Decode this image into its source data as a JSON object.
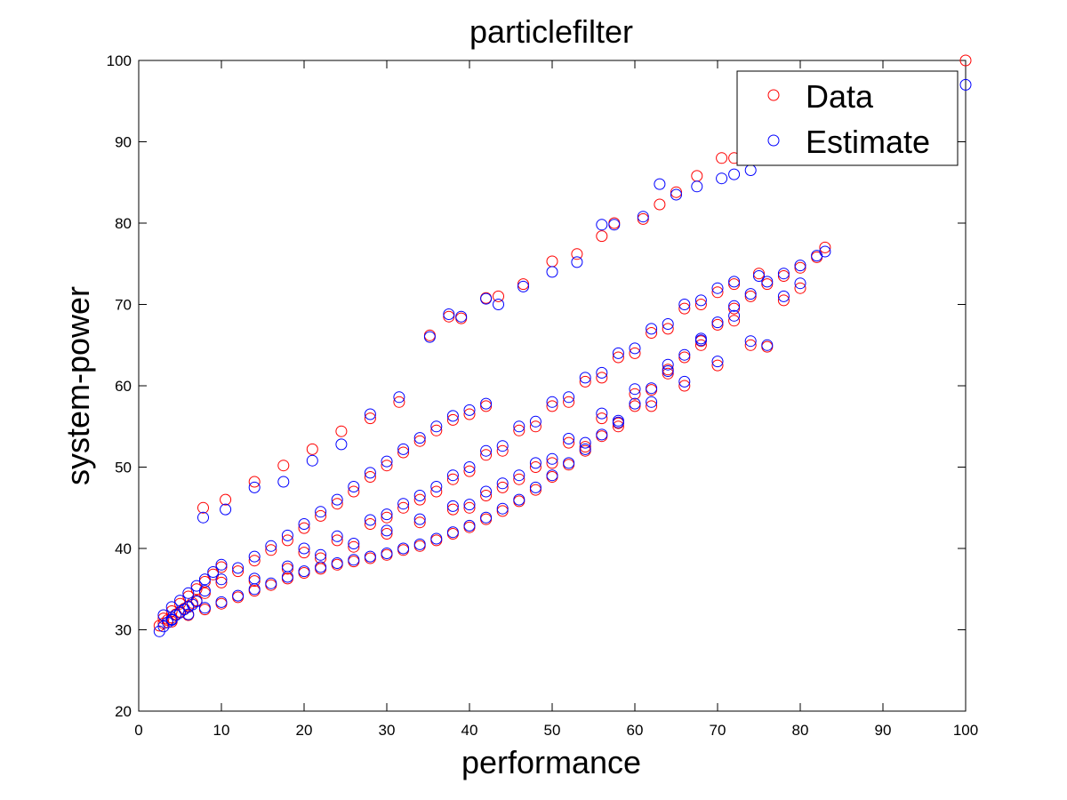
{
  "chart_data": {
    "type": "scatter",
    "title": "particlefilter",
    "xlabel": "performance",
    "ylabel": "system-power",
    "xlim": [
      0,
      100
    ],
    "ylim": [
      20,
      100
    ],
    "xticks": [
      0,
      10,
      20,
      30,
      40,
      50,
      60,
      70,
      80,
      90,
      100
    ],
    "yticks": [
      20,
      30,
      40,
      50,
      60,
      70,
      80,
      90,
      100
    ],
    "grid": false,
    "legend_position": "top-right",
    "marker": "open-circle",
    "series": [
      {
        "name": "Data",
        "color": "#ff0000",
        "points": [
          [
            2.5,
            30.5
          ],
          [
            3,
            30.8
          ],
          [
            3.5,
            31.2
          ],
          [
            4,
            31.5
          ],
          [
            4.5,
            31.9
          ],
          [
            5,
            32.2
          ],
          [
            5.5,
            32.6
          ],
          [
            6,
            32.9
          ],
          [
            6.5,
            33.3
          ],
          [
            7,
            33.6
          ],
          [
            3,
            31.4
          ],
          [
            4,
            32.3
          ],
          [
            5,
            33.2
          ],
          [
            6,
            34.1
          ],
          [
            7,
            35.0
          ],
          [
            8,
            35.9
          ],
          [
            9,
            36.8
          ],
          [
            10,
            37.7
          ],
          [
            4,
            31.0
          ],
          [
            6,
            31.8
          ],
          [
            8,
            32.5
          ],
          [
            10,
            33.2
          ],
          [
            12,
            34.0
          ],
          [
            14,
            34.8
          ],
          [
            16,
            35.5
          ],
          [
            18,
            36.3
          ],
          [
            20,
            37.0
          ],
          [
            22,
            37.5
          ],
          [
            24,
            38.0
          ],
          [
            26,
            38.4
          ],
          [
            28,
            38.8
          ],
          [
            30,
            39.2
          ],
          [
            32,
            39.8
          ],
          [
            34,
            40.3
          ],
          [
            36,
            41.0
          ],
          [
            38,
            41.8
          ],
          [
            40,
            42.6
          ],
          [
            42,
            43.6
          ],
          [
            44,
            44.6
          ],
          [
            46,
            45.8
          ],
          [
            48,
            47.2
          ],
          [
            50,
            48.8
          ],
          [
            52,
            50.3
          ],
          [
            54,
            52.0
          ],
          [
            56,
            53.8
          ],
          [
            58,
            55.4
          ],
          [
            60,
            57.5
          ],
          [
            62,
            59.5
          ],
          [
            64,
            61.5
          ],
          [
            66,
            63.5
          ],
          [
            68,
            65.5
          ],
          [
            70,
            67.5
          ],
          [
            72,
            69.5
          ],
          [
            74,
            71.0
          ],
          [
            76,
            72.5
          ],
          [
            78,
            73.5
          ],
          [
            80,
            74.5
          ],
          [
            82,
            75.8
          ],
          [
            83,
            77.0
          ],
          [
            8,
            34.5
          ],
          [
            10,
            35.8
          ],
          [
            12,
            37.2
          ],
          [
            14,
            38.5
          ],
          [
            16,
            39.8
          ],
          [
            18,
            41.0
          ],
          [
            20,
            42.5
          ],
          [
            22,
            44.0
          ],
          [
            24,
            45.5
          ],
          [
            26,
            47.0
          ],
          [
            28,
            48.8
          ],
          [
            30,
            50.2
          ],
          [
            32,
            51.8
          ],
          [
            34,
            53.2
          ],
          [
            36,
            54.5
          ],
          [
            38,
            55.8
          ],
          [
            40,
            56.5
          ],
          [
            42,
            57.5
          ],
          [
            14,
            36.0
          ],
          [
            18,
            37.5
          ],
          [
            22,
            38.8
          ],
          [
            26,
            40.2
          ],
          [
            30,
            41.8
          ],
          [
            34,
            43.2
          ],
          [
            38,
            44.8
          ],
          [
            42,
            46.5
          ],
          [
            46,
            48.5
          ],
          [
            50,
            50.5
          ],
          [
            54,
            52.5
          ],
          [
            58,
            55.0
          ],
          [
            62,
            57.5
          ],
          [
            66,
            60.0
          ],
          [
            70,
            62.5
          ],
          [
            74,
            65.0
          ],
          [
            76,
            64.8
          ],
          [
            20,
            39.5
          ],
          [
            24,
            41.0
          ],
          [
            28,
            43.0
          ],
          [
            32,
            45.0
          ],
          [
            36,
            47.0
          ],
          [
            40,
            49.5
          ],
          [
            44,
            52.0
          ],
          [
            48,
            55.0
          ],
          [
            52,
            58.0
          ],
          [
            56,
            61.0
          ],
          [
            60,
            64.0
          ],
          [
            64,
            67.0
          ],
          [
            68,
            70.0
          ],
          [
            72,
            72.5
          ],
          [
            75,
            73.8
          ],
          [
            30,
            43.8
          ],
          [
            34,
            46.0
          ],
          [
            38,
            48.5
          ],
          [
            42,
            51.5
          ],
          [
            46,
            54.5
          ],
          [
            50,
            57.5
          ],
          [
            54,
            60.5
          ],
          [
            58,
            63.5
          ],
          [
            62,
            66.5
          ],
          [
            66,
            69.5
          ],
          [
            70,
            71.5
          ],
          [
            40,
            45.0
          ],
          [
            44,
            47.5
          ],
          [
            48,
            50.0
          ],
          [
            52,
            53.0
          ],
          [
            56,
            56.0
          ],
          [
            60,
            59.0
          ],
          [
            64,
            62.0
          ],
          [
            68,
            65.0
          ],
          [
            72,
            68.0
          ],
          [
            78,
            70.5
          ],
          [
            80,
            72.0
          ],
          [
            7.8,
            45.0
          ],
          [
            10.5,
            46.0
          ],
          [
            14,
            48.2
          ],
          [
            17.5,
            50.2
          ],
          [
            21,
            52.2
          ],
          [
            24.5,
            54.4
          ],
          [
            28,
            56.0
          ],
          [
            31.5,
            58.0
          ],
          [
            35.2,
            66.2
          ],
          [
            37.5,
            68.5
          ],
          [
            39,
            68.3
          ],
          [
            42,
            70.8
          ],
          [
            43.5,
            71.0
          ],
          [
            46.5,
            72.5
          ],
          [
            50,
            75.3
          ],
          [
            53,
            76.2
          ],
          [
            56,
            78.4
          ],
          [
            57.5,
            80.0
          ],
          [
            61,
            80.5
          ],
          [
            63,
            82.3
          ],
          [
            65,
            83.8
          ],
          [
            67.5,
            85.8
          ],
          [
            70.5,
            88.0
          ],
          [
            72,
            88.0
          ],
          [
            100,
            100
          ]
        ]
      },
      {
        "name": "Estimate",
        "color": "#0000ff",
        "points": [
          [
            2.5,
            29.8
          ],
          [
            3,
            30.4
          ],
          [
            3.5,
            30.9
          ],
          [
            4,
            31.3
          ],
          [
            4.5,
            31.8
          ],
          [
            5,
            32.1
          ],
          [
            5.5,
            32.5
          ],
          [
            6,
            32.8
          ],
          [
            6.5,
            33.1
          ],
          [
            7,
            33.5
          ],
          [
            3,
            31.8
          ],
          [
            4,
            32.8
          ],
          [
            5,
            33.6
          ],
          [
            6,
            34.5
          ],
          [
            7,
            35.4
          ],
          [
            8,
            36.2
          ],
          [
            9,
            37.1
          ],
          [
            10,
            38.0
          ],
          [
            4,
            31.2
          ],
          [
            6,
            31.9
          ],
          [
            8,
            32.7
          ],
          [
            10,
            33.4
          ],
          [
            12,
            34.2
          ],
          [
            14,
            35.0
          ],
          [
            16,
            35.7
          ],
          [
            18,
            36.5
          ],
          [
            20,
            37.2
          ],
          [
            22,
            37.7
          ],
          [
            24,
            38.2
          ],
          [
            26,
            38.6
          ],
          [
            28,
            39.0
          ],
          [
            30,
            39.4
          ],
          [
            32,
            40.0
          ],
          [
            34,
            40.5
          ],
          [
            36,
            41.2
          ],
          [
            38,
            42.0
          ],
          [
            40,
            42.8
          ],
          [
            42,
            43.8
          ],
          [
            44,
            44.9
          ],
          [
            46,
            46.0
          ],
          [
            48,
            47.5
          ],
          [
            50,
            49.0
          ],
          [
            52,
            50.5
          ],
          [
            54,
            52.2
          ],
          [
            56,
            54.0
          ],
          [
            58,
            55.7
          ],
          [
            60,
            57.8
          ],
          [
            62,
            59.7
          ],
          [
            64,
            61.8
          ],
          [
            66,
            63.8
          ],
          [
            68,
            65.8
          ],
          [
            70,
            67.8
          ],
          [
            72,
            69.8
          ],
          [
            74,
            71.3
          ],
          [
            76,
            72.8
          ],
          [
            78,
            73.8
          ],
          [
            80,
            74.8
          ],
          [
            82,
            76.0
          ],
          [
            83,
            76.5
          ],
          [
            8,
            34.8
          ],
          [
            10,
            36.2
          ],
          [
            12,
            37.6
          ],
          [
            14,
            39.0
          ],
          [
            16,
            40.3
          ],
          [
            18,
            41.6
          ],
          [
            20,
            43.0
          ],
          [
            22,
            44.5
          ],
          [
            24,
            46.0
          ],
          [
            26,
            47.6
          ],
          [
            28,
            49.3
          ],
          [
            30,
            50.7
          ],
          [
            32,
            52.2
          ],
          [
            34,
            53.6
          ],
          [
            36,
            55.0
          ],
          [
            38,
            56.3
          ],
          [
            40,
            57.0
          ],
          [
            42,
            57.8
          ],
          [
            14,
            36.3
          ],
          [
            18,
            37.8
          ],
          [
            22,
            39.2
          ],
          [
            26,
            40.6
          ],
          [
            30,
            42.2
          ],
          [
            34,
            43.6
          ],
          [
            38,
            45.2
          ],
          [
            42,
            47.0
          ],
          [
            46,
            49.0
          ],
          [
            50,
            51.0
          ],
          [
            54,
            53.0
          ],
          [
            58,
            55.5
          ],
          [
            62,
            58.0
          ],
          [
            66,
            60.5
          ],
          [
            70,
            63.0
          ],
          [
            74,
            65.5
          ],
          [
            76,
            65.0
          ],
          [
            20,
            40.0
          ],
          [
            24,
            41.5
          ],
          [
            28,
            43.5
          ],
          [
            32,
            45.5
          ],
          [
            36,
            47.6
          ],
          [
            40,
            50.0
          ],
          [
            44,
            52.6
          ],
          [
            48,
            55.6
          ],
          [
            52,
            58.6
          ],
          [
            56,
            61.6
          ],
          [
            60,
            64.6
          ],
          [
            64,
            67.6
          ],
          [
            68,
            70.5
          ],
          [
            72,
            72.8
          ],
          [
            75,
            73.5
          ],
          [
            30,
            44.2
          ],
          [
            34,
            46.5
          ],
          [
            38,
            49.0
          ],
          [
            42,
            52.0
          ],
          [
            46,
            55.0
          ],
          [
            50,
            58.0
          ],
          [
            54,
            61.0
          ],
          [
            58,
            64.0
          ],
          [
            62,
            67.0
          ],
          [
            66,
            70.0
          ],
          [
            70,
            72.0
          ],
          [
            40,
            45.4
          ],
          [
            44,
            48.0
          ],
          [
            48,
            50.5
          ],
          [
            52,
            53.5
          ],
          [
            56,
            56.6
          ],
          [
            60,
            59.6
          ],
          [
            64,
            62.6
          ],
          [
            68,
            65.6
          ],
          [
            72,
            68.6
          ],
          [
            78,
            71.0
          ],
          [
            80,
            72.6
          ],
          [
            7.8,
            43.8
          ],
          [
            10.5,
            44.8
          ],
          [
            14,
            47.5
          ],
          [
            17.5,
            48.2
          ],
          [
            21,
            50.8
          ],
          [
            24.5,
            52.8
          ],
          [
            28,
            56.5
          ],
          [
            31.5,
            58.6
          ],
          [
            35.2,
            66.0
          ],
          [
            37.5,
            68.8
          ],
          [
            39,
            68.5
          ],
          [
            42,
            70.7
          ],
          [
            43.5,
            70.0
          ],
          [
            46.5,
            72.2
          ],
          [
            50,
            74.0
          ],
          [
            53,
            75.2
          ],
          [
            56,
            79.8
          ],
          [
            57.5,
            79.8
          ],
          [
            61,
            80.8
          ],
          [
            63,
            84.8
          ],
          [
            65,
            83.5
          ],
          [
            67.5,
            84.5
          ],
          [
            70.5,
            85.5
          ],
          [
            72,
            86.0
          ],
          [
            74,
            86.5
          ],
          [
            100,
            97
          ]
        ]
      }
    ]
  }
}
